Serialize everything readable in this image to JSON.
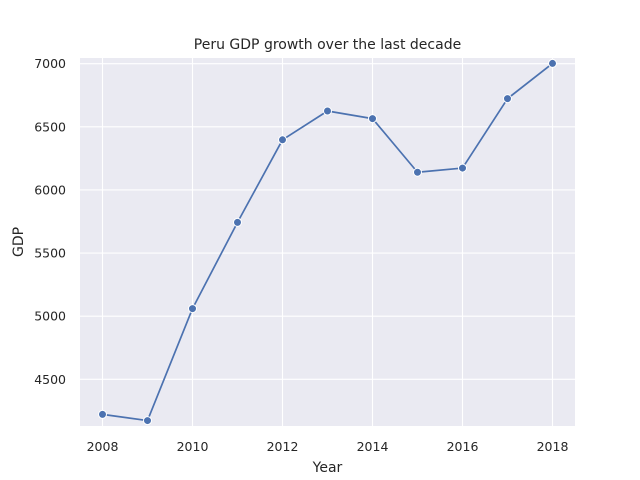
{
  "chart_data": {
    "type": "line",
    "title": "Peru GDP growth over the last decade",
    "xlabel": "Year",
    "ylabel": "GDP",
    "x": [
      2008,
      2009,
      2010,
      2011,
      2012,
      2013,
      2014,
      2015,
      2016,
      2017,
      2018
    ],
    "series": [
      {
        "name": "GDP",
        "values": [
          4222,
          4173,
          5060,
          5743,
          6397,
          6625,
          6565,
          6140,
          6173,
          6723,
          7002
        ]
      }
    ],
    "xticks": [
      2008,
      2010,
      2012,
      2014,
      2016,
      2018
    ],
    "yticks": [
      4500,
      5000,
      5500,
      6000,
      6500,
      7000
    ],
    "xlim": [
      2007.5,
      2018.5
    ],
    "ylim": [
      4130,
      7045
    ],
    "grid": true,
    "legend": "none"
  },
  "colors": {
    "background": "#EAEAF2",
    "grid": "#FFFFFF",
    "series": "#4C72B0",
    "text": "#262626"
  }
}
